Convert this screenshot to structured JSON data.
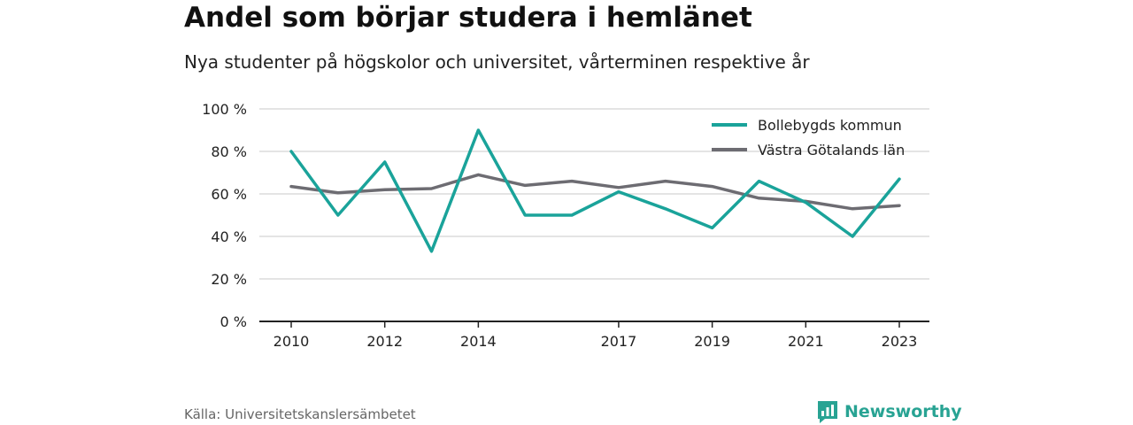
{
  "title": "Andel som börjar studera i hemlänet",
  "subtitle": "Nya studenter på högskolor och universitet, vårterminen respektive år",
  "source": "Källa: Universitetskanslersämbetet",
  "brand": {
    "name": "Newsworthy",
    "icon": "newsworthy-logo-icon",
    "color": "#28a393"
  },
  "chart_data": {
    "type": "line",
    "title": "Andel som börjar studera i hemlänet",
    "subtitle": "Nya studenter på högskolor och universitet, vårterminen respektive år",
    "x": [
      2010,
      2011,
      2012,
      2013,
      2014,
      2015,
      2016,
      2017,
      2018,
      2019,
      2020,
      2021,
      2022,
      2023
    ],
    "x_tick_labels": [
      "2010",
      "2012",
      "2014",
      "2017",
      "2019",
      "2021",
      "2023"
    ],
    "y_ticks": [
      0,
      20,
      40,
      60,
      80,
      100
    ],
    "y_tick_labels": [
      "0 %",
      "20 %",
      "40 %",
      "60 %",
      "80 %",
      "100 %"
    ],
    "ylim": [
      0,
      100
    ],
    "grid": true,
    "legend_position": "top-right",
    "series": [
      {
        "name": "Bollebygds kommun",
        "color": "#1aa39a",
        "values": [
          80,
          50,
          75,
          33,
          90,
          50,
          50,
          61,
          53,
          44,
          66,
          56,
          40,
          67
        ]
      },
      {
        "name": "Västra Götalands län",
        "color": "#6d6c72",
        "values": [
          63.5,
          60.5,
          62,
          62.5,
          69,
          64,
          66,
          63,
          66,
          63.5,
          58,
          56.5,
          53,
          54.5
        ]
      }
    ]
  }
}
